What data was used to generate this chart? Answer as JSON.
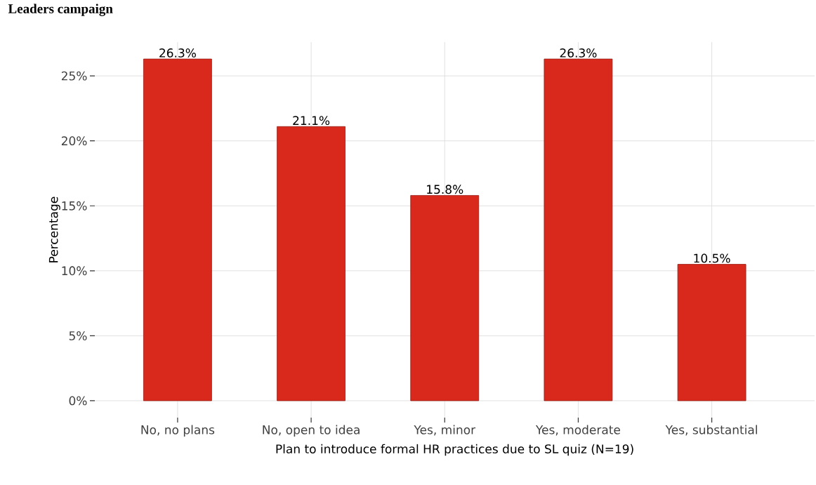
{
  "chart_data": {
    "type": "bar",
    "title": "Leaders campaign",
    "xlabel": "Plan to introduce formal HR practices due to SL quiz (N=19)",
    "ylabel": "Percentage",
    "categories": [
      "No, no plans",
      "No, open to idea",
      "Yes, minor",
      "Yes, moderate",
      "Yes, substantial"
    ],
    "values": [
      26.3,
      21.1,
      15.8,
      26.3,
      10.5
    ],
    "value_labels": [
      "26.3%",
      "21.1%",
      "15.8%",
      "26.3%",
      "10.5%"
    ],
    "color": "#d9291c",
    "ylim": [
      -1.3,
      27.6
    ],
    "yticks": [
      {
        "value": 0,
        "label": "0%"
      },
      {
        "value": 5,
        "label": "5%"
      },
      {
        "value": 10,
        "label": "10%"
      },
      {
        "value": 15,
        "label": "15%"
      },
      {
        "value": 20,
        "label": "20%"
      },
      {
        "value": 25,
        "label": "25%"
      }
    ],
    "grid": true
  }
}
